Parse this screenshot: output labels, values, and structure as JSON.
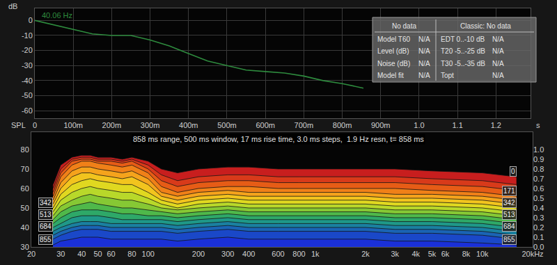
{
  "chart_data": [
    {
      "type": "line",
      "xlabel": "s",
      "ylabel": "dB",
      "x": [
        0,
        0.05,
        0.1,
        0.15,
        0.2,
        0.25,
        0.3,
        0.35,
        0.4,
        0.45,
        0.5,
        0.55,
        0.6,
        0.65,
        0.7,
        0.75,
        0.8,
        0.855
      ],
      "series": [
        {
          "name": "40.06 Hz",
          "color": "#2e8b3e",
          "values": [
            0,
            -3,
            -6,
            -9,
            -10,
            -10,
            -13,
            -17,
            -22,
            -27,
            -30,
            -33,
            -34,
            -35,
            -37,
            -40,
            -42,
            -45
          ]
        }
      ],
      "xlim": [
        0,
        1.29
      ],
      "xticks": [
        0,
        {
          "value": 0.1,
          "label": "100m"
        },
        {
          "value": 0.2,
          "label": "200m"
        },
        {
          "value": 0.3,
          "label": "300m"
        },
        {
          "value": 0.4,
          "label": "400m"
        },
        {
          "value": 0.5,
          "label": "500m"
        },
        {
          "value": 0.6,
          "label": "600m"
        },
        {
          "value": 0.7,
          "label": "700m"
        },
        {
          "value": 0.8,
          "label": "800m"
        },
        {
          "value": 0.9,
          "label": "900m"
        },
        {
          "value": 1,
          "label": "1.0"
        },
        1.1,
        1.2
      ],
      "ylim": [
        -65,
        8
      ],
      "yticks": [
        0,
        -10,
        -20,
        -30,
        -40,
        -50,
        -60
      ],
      "grid": true,
      "table": {
        "header": [
          "No data",
          "Classic: No data"
        ],
        "rows": [
          [
            "Model T60",
            "N/A",
            "EDT 0..-10 dB",
            "N/A"
          ],
          [
            "Level (dB)",
            "N/A",
            "T20 -5..-25 dB",
            "N/A"
          ],
          [
            "Noise (dB)",
            "N/A",
            "T30 -5..-35 dB",
            "N/A"
          ],
          [
            "Model fit",
            "N/A",
            "Topt",
            "N/A"
          ]
        ]
      }
    },
    {
      "type": "waterfall",
      "title": "858 ms range, 500 ms window, 17 ms rise time, 3.0 ms steps,  1.9 Hz resn, t= 858 ms",
      "ylabel": "SPL",
      "log": "x",
      "x": [
        27,
        30,
        35,
        40,
        45,
        50,
        60,
        70,
        80,
        100,
        120,
        150,
        200,
        300,
        400,
        600,
        800,
        1000,
        2000,
        3000,
        5000,
        10000,
        16000
      ],
      "series": [
        {
          "time": 0,
          "color": "#c81e1e",
          "values": [
            62,
            72,
            76,
            77,
            77,
            76,
            76,
            75,
            76,
            74,
            70,
            68,
            70,
            71,
            71,
            70,
            70,
            70,
            70,
            70,
            69,
            68,
            66
          ]
        },
        {
          "time": 57,
          "color": "#d83a1a",
          "values": [
            60,
            70,
            75,
            76,
            76,
            75,
            75,
            74,
            75,
            72,
            67,
            64,
            66,
            67,
            67,
            66,
            66,
            66,
            66,
            66,
            65,
            64,
            62
          ]
        },
        {
          "time": 114,
          "color": "#e65c16",
          "values": [
            58,
            68,
            74,
            75,
            75,
            74,
            74,
            73,
            74,
            70,
            64,
            61,
            63,
            64,
            64,
            63,
            63,
            63,
            63,
            63,
            62,
            61,
            59
          ]
        },
        {
          "time": 171,
          "color": "#f08018",
          "values": [
            56,
            66,
            72,
            74,
            74,
            73,
            72,
            71,
            72,
            68,
            61,
            58,
            60,
            61,
            61,
            60,
            60,
            60,
            60,
            60,
            59,
            58,
            56
          ]
        },
        {
          "time": 228,
          "color": "#f5a31c",
          "values": [
            54,
            63,
            69,
            71,
            71,
            70,
            69,
            68,
            69,
            65,
            58,
            56,
            58,
            59,
            58,
            58,
            58,
            58,
            58,
            57,
            57,
            56,
            54
          ]
        },
        {
          "time": 285,
          "color": "#f2c41e",
          "values": [
            52,
            60,
            66,
            68,
            68,
            67,
            66,
            65,
            66,
            62,
            56,
            54,
            56,
            57,
            56,
            56,
            56,
            56,
            56,
            55,
            55,
            54,
            52
          ]
        },
        {
          "time": 342,
          "color": "#e0d820",
          "values": [
            50,
            57,
            62,
            64,
            65,
            64,
            63,
            62,
            62,
            58,
            54,
            52,
            54,
            55,
            54,
            54,
            54,
            54,
            54,
            53,
            53,
            52,
            50
          ]
        },
        {
          "time": 399,
          "color": "#b8d82a",
          "values": [
            48,
            54,
            58,
            60,
            61,
            60,
            59,
            58,
            58,
            55,
            52,
            50,
            52,
            53,
            52,
            52,
            52,
            52,
            52,
            51,
            51,
            50,
            48
          ]
        },
        {
          "time": 456,
          "color": "#86c834",
          "values": [
            46,
            51,
            54,
            56,
            57,
            56,
            55,
            54,
            54,
            52,
            50,
            49,
            50,
            51,
            50,
            50,
            50,
            50,
            50,
            49,
            49,
            48,
            46
          ]
        },
        {
          "time": 513,
          "color": "#4fb84a",
          "values": [
            44,
            48,
            51,
            52,
            53,
            52,
            51,
            50,
            50,
            49,
            48,
            47,
            48,
            49,
            48,
            48,
            48,
            48,
            48,
            47,
            47,
            46,
            44
          ]
        },
        {
          "time": 570,
          "color": "#2ea868",
          "values": [
            42,
            45,
            48,
            49,
            49,
            49,
            48,
            47,
            47,
            46,
            46,
            45,
            46,
            47,
            46,
            46,
            46,
            46,
            46,
            45,
            45,
            44,
            42
          ]
        },
        {
          "time": 627,
          "color": "#1f9888",
          "values": [
            40,
            42,
            45,
            46,
            46,
            46,
            45,
            44,
            44,
            44,
            44,
            43,
            44,
            45,
            44,
            44,
            44,
            44,
            44,
            43,
            43,
            42,
            40
          ]
        },
        {
          "time": 684,
          "color": "#1a80a0",
          "values": [
            38,
            40,
            42,
            43,
            43,
            43,
            42,
            42,
            42,
            42,
            42,
            41,
            42,
            43,
            42,
            42,
            42,
            42,
            42,
            41,
            41,
            40,
            38
          ]
        },
        {
          "time": 741,
          "color": "#1a64b4",
          "values": [
            36,
            38,
            40,
            41,
            41,
            41,
            40,
            40,
            40,
            40,
            40,
            39,
            40,
            41,
            40,
            40,
            40,
            40,
            40,
            39,
            39,
            38,
            36
          ]
        },
        {
          "time": 798,
          "color": "#1a48c8",
          "values": [
            34,
            36,
            38,
            39,
            39,
            39,
            38,
            38,
            38,
            38,
            38,
            37,
            38,
            39,
            38,
            38,
            38,
            38,
            38,
            37,
            37,
            36,
            34
          ]
        },
        {
          "time": 855,
          "color": "#1a30d8",
          "values": [
            31,
            33,
            34,
            35,
            35,
            35,
            34,
            34,
            34,
            34,
            34,
            33,
            34,
            35,
            34,
            34,
            34,
            34,
            34,
            33,
            33,
            32,
            31
          ]
        }
      ],
      "xlim": [
        20,
        20000
      ],
      "xticks": [
        20,
        30,
        40,
        50,
        60,
        80,
        100,
        200,
        300,
        400,
        600,
        800,
        {
          "value": 1000,
          "label": "1k"
        },
        {
          "value": 2000,
          "label": "2k"
        },
        {
          "value": 3000,
          "label": "3k"
        },
        {
          "value": 4000,
          "label": "4k"
        },
        {
          "value": 5000,
          "label": "5k"
        },
        {
          "value": 6000,
          "label": "6k"
        },
        {
          "value": 8000,
          "label": "8k"
        },
        {
          "value": 10000,
          "label": "10k"
        },
        {
          "value": 20000,
          "label": "20kHz"
        }
      ],
      "ylim": [
        30,
        88.9
      ],
      "yticks": [
        30,
        40,
        50,
        60,
        70,
        80
      ],
      "y2lim": [
        0,
        1.18
      ],
      "y2ticks": [
        {
          "value": 0,
          "label": "0.0"
        },
        0.1,
        0.2,
        0.3,
        0.4,
        0.5,
        0.6,
        0.7,
        0.8,
        0.9,
        {
          "value": 1,
          "label": "1.0"
        }
      ],
      "grid": false,
      "right_labels": [
        0,
        171,
        342,
        513,
        684,
        855
      ],
      "left_labels": [
        684,
        855,
        342,
        513
      ]
    }
  ]
}
